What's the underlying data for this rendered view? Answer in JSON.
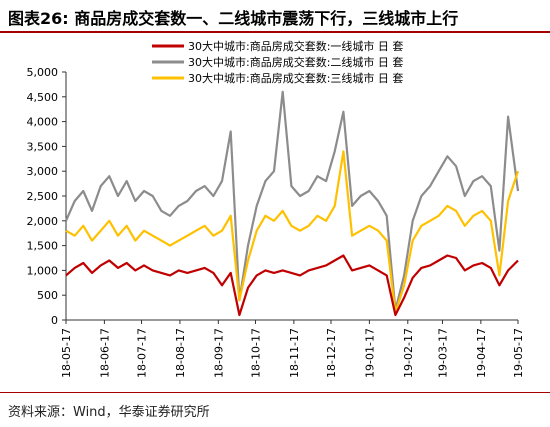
{
  "title": "图表26:   商品房成交套数一、二线城市震荡下行，三线城市上行",
  "source": "资料来源：Wind，华泰证券研究所",
  "chart_data": {
    "type": "line",
    "title": "图表26:   商品房成交套数一、二线城市震荡下行，三线城市上行",
    "xlabel": "",
    "ylabel": "",
    "ylim": [
      0,
      5000
    ],
    "yticks": [
      0,
      500,
      1000,
      1500,
      2000,
      2500,
      3000,
      3500,
      4000,
      4500,
      5000
    ],
    "ytick_labels": [
      "0",
      "500",
      "1,000",
      "1,500",
      "2,000",
      "2,500",
      "3,000",
      "3,500",
      "4,000",
      "4,500",
      "5,000"
    ],
    "xlim": [
      "2018-05-17",
      "2019-05-17"
    ],
    "xticks": [
      "2018-05-17",
      "2018-06-17",
      "2018-07-17",
      "2018-08-17",
      "2018-09-17",
      "2018-10-17",
      "2018-11-17",
      "2018-12-17",
      "2019-01-17",
      "2019-02-17",
      "2019-03-17",
      "2019-04-17",
      "2019-05-17"
    ],
    "xtick_labels": [
      "18-05-17",
      "18-06-17",
      "18-07-17",
      "18-08-17",
      "18-09-17",
      "18-10-17",
      "18-11-17",
      "18-12-17",
      "19-01-17",
      "19-02-17",
      "19-03-17",
      "19-04-17",
      "19-05-17"
    ],
    "grid": false,
    "legend": "top-right",
    "series": [
      {
        "name": "30大中城市:商品房成交套数:一线城市 日 套",
        "color": "#c00000",
        "points": [
          [
            "2018-05-17",
            900
          ],
          [
            "2018-05-24",
            1050
          ],
          [
            "2018-05-31",
            1150
          ],
          [
            "2018-06-07",
            950
          ],
          [
            "2018-06-14",
            1100
          ],
          [
            "2018-06-21",
            1200
          ],
          [
            "2018-06-28",
            1050
          ],
          [
            "2018-07-05",
            1150
          ],
          [
            "2018-07-12",
            1000
          ],
          [
            "2018-07-19",
            1100
          ],
          [
            "2018-07-26",
            1000
          ],
          [
            "2018-08-02",
            950
          ],
          [
            "2018-08-09",
            900
          ],
          [
            "2018-08-16",
            1000
          ],
          [
            "2018-08-23",
            950
          ],
          [
            "2018-08-30",
            1000
          ],
          [
            "2018-09-06",
            1050
          ],
          [
            "2018-09-13",
            950
          ],
          [
            "2018-09-20",
            700
          ],
          [
            "2018-09-27",
            950
          ],
          [
            "2018-10-04",
            100
          ],
          [
            "2018-10-11",
            650
          ],
          [
            "2018-10-18",
            900
          ],
          [
            "2018-10-25",
            1000
          ],
          [
            "2018-11-01",
            950
          ],
          [
            "2018-11-08",
            1000
          ],
          [
            "2018-11-15",
            950
          ],
          [
            "2018-11-22",
            900
          ],
          [
            "2018-11-29",
            1000
          ],
          [
            "2018-12-06",
            1050
          ],
          [
            "2018-12-13",
            1100
          ],
          [
            "2018-12-20",
            1200
          ],
          [
            "2018-12-27",
            1300
          ],
          [
            "2019-01-03",
            1000
          ],
          [
            "2019-01-10",
            1050
          ],
          [
            "2019-01-17",
            1100
          ],
          [
            "2019-01-24",
            1000
          ],
          [
            "2019-01-31",
            900
          ],
          [
            "2019-02-07",
            100
          ],
          [
            "2019-02-14",
            450
          ],
          [
            "2019-02-21",
            850
          ],
          [
            "2019-02-28",
            1050
          ],
          [
            "2019-03-07",
            1100
          ],
          [
            "2019-03-14",
            1200
          ],
          [
            "2019-03-21",
            1300
          ],
          [
            "2019-03-28",
            1250
          ],
          [
            "2019-04-04",
            1000
          ],
          [
            "2019-04-11",
            1100
          ],
          [
            "2019-04-18",
            1150
          ],
          [
            "2019-04-25",
            1050
          ],
          [
            "2019-05-02",
            700
          ],
          [
            "2019-05-09",
            1000
          ],
          [
            "2019-05-17",
            1200
          ]
        ]
      },
      {
        "name": "30大中城市:商品房成交套数:二线城市 日 套",
        "color": "#8c8c8c",
        "points": [
          [
            "2018-05-17",
            2000
          ],
          [
            "2018-05-24",
            2400
          ],
          [
            "2018-05-31",
            2600
          ],
          [
            "2018-06-07",
            2200
          ],
          [
            "2018-06-14",
            2700
          ],
          [
            "2018-06-21",
            2900
          ],
          [
            "2018-06-28",
            2500
          ],
          [
            "2018-07-05",
            2800
          ],
          [
            "2018-07-12",
            2400
          ],
          [
            "2018-07-19",
            2600
          ],
          [
            "2018-07-26",
            2500
          ],
          [
            "2018-08-02",
            2200
          ],
          [
            "2018-08-09",
            2100
          ],
          [
            "2018-08-16",
            2300
          ],
          [
            "2018-08-23",
            2400
          ],
          [
            "2018-08-30",
            2600
          ],
          [
            "2018-09-06",
            2700
          ],
          [
            "2018-09-13",
            2500
          ],
          [
            "2018-09-20",
            2800
          ],
          [
            "2018-09-27",
            3800
          ],
          [
            "2018-10-04",
            400
          ],
          [
            "2018-10-11",
            1500
          ],
          [
            "2018-10-18",
            2300
          ],
          [
            "2018-10-25",
            2800
          ],
          [
            "2018-11-01",
            3000
          ],
          [
            "2018-11-08",
            4600
          ],
          [
            "2018-11-15",
            2700
          ],
          [
            "2018-11-22",
            2500
          ],
          [
            "2018-11-29",
            2600
          ],
          [
            "2018-12-06",
            2900
          ],
          [
            "2018-12-13",
            2800
          ],
          [
            "2018-12-20",
            3400
          ],
          [
            "2018-12-27",
            4200
          ],
          [
            "2019-01-03",
            2300
          ],
          [
            "2019-01-10",
            2500
          ],
          [
            "2019-01-17",
            2600
          ],
          [
            "2019-01-24",
            2400
          ],
          [
            "2019-01-31",
            2100
          ],
          [
            "2019-02-07",
            200
          ],
          [
            "2019-02-14",
            900
          ],
          [
            "2019-02-21",
            2000
          ],
          [
            "2019-02-28",
            2500
          ],
          [
            "2019-03-07",
            2700
          ],
          [
            "2019-03-14",
            3000
          ],
          [
            "2019-03-21",
            3300
          ],
          [
            "2019-03-28",
            3100
          ],
          [
            "2019-04-04",
            2500
          ],
          [
            "2019-04-11",
            2800
          ],
          [
            "2019-04-18",
            2900
          ],
          [
            "2019-04-25",
            2700
          ],
          [
            "2019-05-02",
            1400
          ],
          [
            "2019-05-09",
            4100
          ],
          [
            "2019-05-17",
            2600
          ]
        ]
      },
      {
        "name": "30大中城市:商品房成交套数:三线城市 日 套",
        "color": "#ffc000",
        "points": [
          [
            "2018-05-17",
            1800
          ],
          [
            "2018-05-24",
            1700
          ],
          [
            "2018-05-31",
            1900
          ],
          [
            "2018-06-07",
            1600
          ],
          [
            "2018-06-14",
            1800
          ],
          [
            "2018-06-21",
            2000
          ],
          [
            "2018-06-28",
            1700
          ],
          [
            "2018-07-05",
            1900
          ],
          [
            "2018-07-12",
            1600
          ],
          [
            "2018-07-19",
            1800
          ],
          [
            "2018-07-26",
            1700
          ],
          [
            "2018-08-02",
            1600
          ],
          [
            "2018-08-09",
            1500
          ],
          [
            "2018-08-16",
            1600
          ],
          [
            "2018-08-23",
            1700
          ],
          [
            "2018-08-30",
            1800
          ],
          [
            "2018-09-06",
            1900
          ],
          [
            "2018-09-13",
            1700
          ],
          [
            "2018-09-20",
            1800
          ],
          [
            "2018-09-27",
            2100
          ],
          [
            "2018-10-04",
            400
          ],
          [
            "2018-10-11",
            1200
          ],
          [
            "2018-10-18",
            1800
          ],
          [
            "2018-10-25",
            2100
          ],
          [
            "2018-11-01",
            2000
          ],
          [
            "2018-11-08",
            2200
          ],
          [
            "2018-11-15",
            1900
          ],
          [
            "2018-11-22",
            1800
          ],
          [
            "2018-11-29",
            1900
          ],
          [
            "2018-12-06",
            2100
          ],
          [
            "2018-12-13",
            2000
          ],
          [
            "2018-12-20",
            2300
          ],
          [
            "2018-12-27",
            3400
          ],
          [
            "2019-01-03",
            1700
          ],
          [
            "2019-01-10",
            1800
          ],
          [
            "2019-01-17",
            1900
          ],
          [
            "2019-01-24",
            1800
          ],
          [
            "2019-01-31",
            1600
          ],
          [
            "2019-02-07",
            150
          ],
          [
            "2019-02-14",
            700
          ],
          [
            "2019-02-21",
            1600
          ],
          [
            "2019-02-28",
            1900
          ],
          [
            "2019-03-07",
            2000
          ],
          [
            "2019-03-14",
            2100
          ],
          [
            "2019-03-21",
            2300
          ],
          [
            "2019-03-28",
            2200
          ],
          [
            "2019-04-04",
            1900
          ],
          [
            "2019-04-11",
            2100
          ],
          [
            "2019-04-18",
            2200
          ],
          [
            "2019-04-25",
            2000
          ],
          [
            "2019-05-02",
            900
          ],
          [
            "2019-05-09",
            2400
          ],
          [
            "2019-05-17",
            3000
          ]
        ]
      }
    ]
  }
}
